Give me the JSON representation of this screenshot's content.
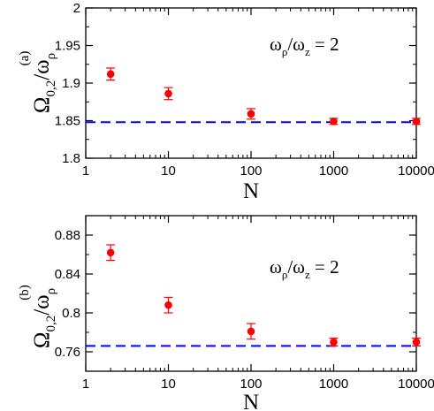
{
  "chart_data": [
    {
      "type": "scatter",
      "panel_label": "(a)",
      "xlabel": "N",
      "ylabel": "Ω0,2/ωρ",
      "annotation": "ωρ/ωz = 2",
      "xscale": "log",
      "xlim": [
        1,
        10000
      ],
      "ylim": [
        1.8,
        2.0
      ],
      "xticks": [
        1,
        10,
        100,
        1000,
        10000
      ],
      "xtick_labels": [
        "1",
        "10",
        "100",
        "1000",
        "10000"
      ],
      "yticks": [
        1.8,
        1.85,
        1.9,
        1.95,
        2.0
      ],
      "ytick_labels": [
        "1.8",
        "1.85",
        "1.9",
        "1.95",
        "2"
      ],
      "points": [
        {
          "x": 2,
          "y": 1.912,
          "err": 0.008
        },
        {
          "x": 10,
          "y": 1.886,
          "err": 0.008
        },
        {
          "x": 100,
          "y": 1.859,
          "err": 0.007
        },
        {
          "x": 1000,
          "y": 1.849,
          "err": 0.004
        },
        {
          "x": 10000,
          "y": 1.849,
          "err": 0.004
        }
      ],
      "reference_line": {
        "y": 1.848,
        "style": "dashed",
        "color": "#0000ff"
      },
      "marker_color": "#ff0000"
    },
    {
      "type": "scatter",
      "panel_label": "(b)",
      "xlabel": "N",
      "ylabel": "Ω0,2/ωρ",
      "annotation": "ωρ/ωz = 2",
      "xscale": "log",
      "xlim": [
        1,
        10000
      ],
      "ylim": [
        0.74,
        0.9
      ],
      "xticks": [
        1,
        10,
        100,
        1000,
        10000
      ],
      "xtick_labels": [
        "1",
        "10",
        "100",
        "1000",
        "10000"
      ],
      "yticks": [
        0.76,
        0.8,
        0.84,
        0.88
      ],
      "ytick_labels": [
        "0.76",
        "0.8",
        "0.84",
        "0.88"
      ],
      "points": [
        {
          "x": 2,
          "y": 0.862,
          "err": 0.008
        },
        {
          "x": 10,
          "y": 0.808,
          "err": 0.008
        },
        {
          "x": 100,
          "y": 0.781,
          "err": 0.008
        },
        {
          "x": 1000,
          "y": 0.77,
          "err": 0.004
        },
        {
          "x": 10000,
          "y": 0.77,
          "err": 0.004
        }
      ],
      "reference_line": {
        "y": 0.766,
        "style": "dashed",
        "color": "#0000ff"
      },
      "marker_color": "#ff0000"
    }
  ]
}
